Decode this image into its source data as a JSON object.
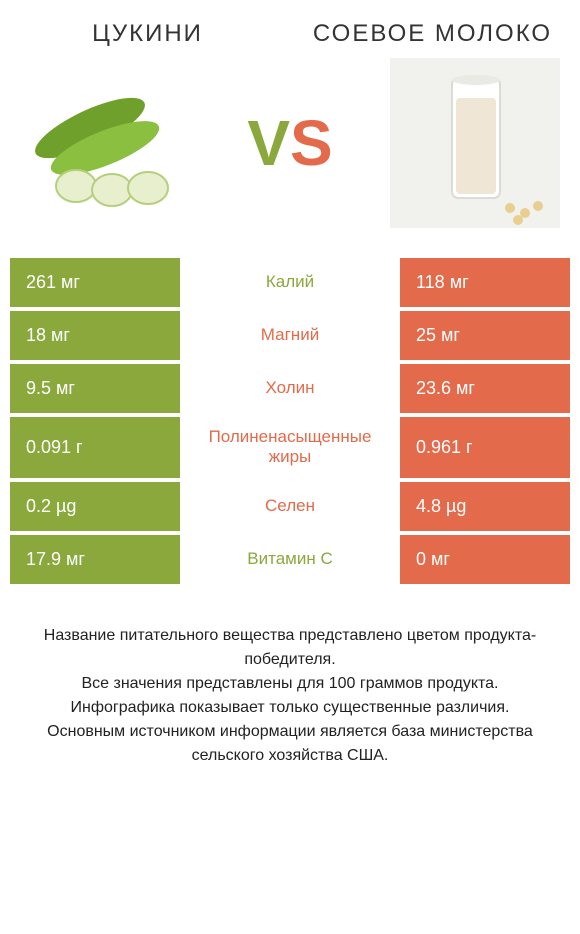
{
  "header": {
    "left_title": "ЦУКИНИ",
    "right_title": "СОЕВОЕ МОЛОКО",
    "vs_v": "V",
    "vs_s": "S"
  },
  "colors": {
    "left": "#8aa83c",
    "right": "#e36a4a",
    "bg": "#ffffff",
    "text": "#333333"
  },
  "table": {
    "rows": [
      {
        "left": "261 мг",
        "mid": "Калий",
        "right": "118 мг",
        "winner": "left"
      },
      {
        "left": "18 мг",
        "mid": "Магний",
        "right": "25 мг",
        "winner": "right"
      },
      {
        "left": "9.5 мг",
        "mid": "Холин",
        "right": "23.6 мг",
        "winner": "right"
      },
      {
        "left": "0.091 г",
        "mid": "Полиненасыщенные жиры",
        "right": "0.961 г",
        "winner": "right"
      },
      {
        "left": "0.2 µg",
        "mid": "Селен",
        "right": "4.8 µg",
        "winner": "right"
      },
      {
        "left": "17.9 мг",
        "mid": "Витамин C",
        "right": "0 мг",
        "winner": "left"
      }
    ]
  },
  "footer": {
    "line1": "Название питательного вещества представлено цветом продукта-победителя.",
    "line2": "Все значения представлены для 100 граммов продукта.",
    "line3": "Инфографика показывает только существенные различия.",
    "line4": "Основным источником информации является база министерства сельского хозяйства США."
  },
  "style": {
    "title_fontsize": 24,
    "vs_fontsize": 64,
    "cell_fontsize": 18,
    "mid_fontsize": 17,
    "footer_fontsize": 16
  }
}
